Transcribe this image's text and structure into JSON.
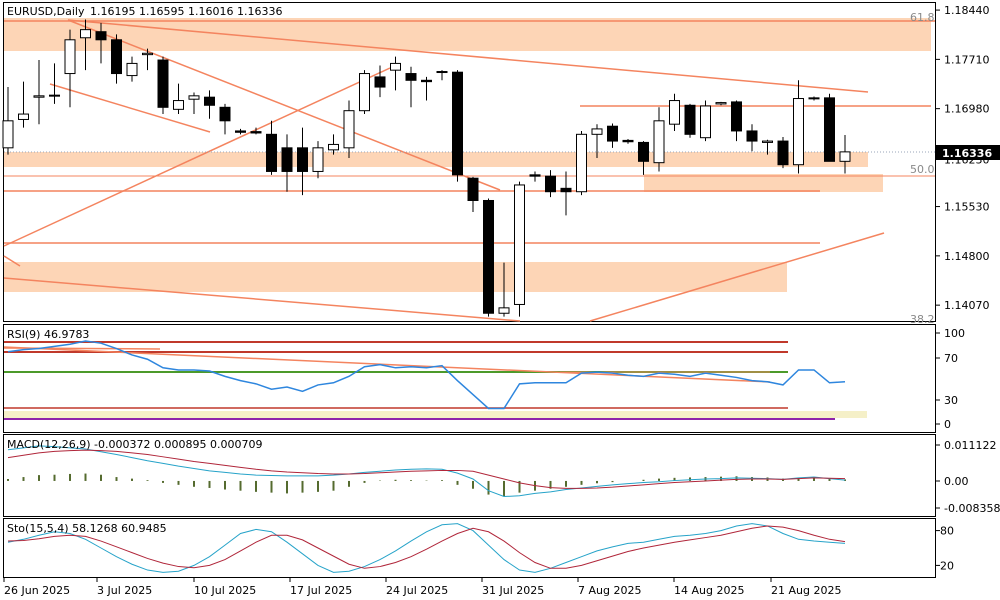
{
  "chart_data": {
    "type": "candlestick",
    "header": {
      "symbol": "EURUSD",
      "timeframe": "Daily",
      "label": "EURUSD,Daily",
      "ohlc_text": "1.16195 1.16595 1.16016 1.16336"
    },
    "current_price": "1.16336",
    "price_axis": {
      "ticks": [
        "1.18440",
        "1.17710",
        "1.16980",
        "1.16230",
        "1.15530",
        "1.14800",
        "1.14070"
      ],
      "ylim": [
        1.1385,
        1.1853
      ]
    },
    "date_axis": {
      "labels": [
        "26 Jun 2025",
        "3 Jul 2025",
        "10 Jul 2025",
        "17 Jul 2025",
        "24 Jul 2025",
        "31 Jul 2025",
        "7 Aug 2025",
        "14 Aug 2025",
        "21 Aug 2025"
      ]
    },
    "fib_labels": [
      "61.8",
      "50.0",
      "38.2"
    ],
    "candles": [
      {
        "o": 1.164,
        "h": 1.173,
        "l": 1.163,
        "c": 1.168
      },
      {
        "o": 1.1682,
        "h": 1.1738,
        "l": 1.167,
        "c": 1.169
      },
      {
        "o": 1.1715,
        "h": 1.177,
        "l": 1.1675,
        "c": 1.1717
      },
      {
        "o": 1.1718,
        "h": 1.1765,
        "l": 1.1705,
        "c": 1.1718
      },
      {
        "o": 1.175,
        "h": 1.1815,
        "l": 1.17,
        "c": 1.18
      },
      {
        "o": 1.1803,
        "h": 1.183,
        "l": 1.1755,
        "c": 1.1815
      },
      {
        "o": 1.1812,
        "h": 1.1825,
        "l": 1.1765,
        "c": 1.18
      },
      {
        "o": 1.18,
        "h": 1.1808,
        "l": 1.1735,
        "c": 1.175
      },
      {
        "o": 1.1747,
        "h": 1.1775,
        "l": 1.1738,
        "c": 1.1765
      },
      {
        "o": 1.1778,
        "h": 1.1787,
        "l": 1.1755,
        "c": 1.178
      },
      {
        "o": 1.177,
        "h": 1.1775,
        "l": 1.169,
        "c": 1.17
      },
      {
        "o": 1.1697,
        "h": 1.1735,
        "l": 1.169,
        "c": 1.171
      },
      {
        "o": 1.1712,
        "h": 1.1722,
        "l": 1.169,
        "c": 1.1717
      },
      {
        "o": 1.1715,
        "h": 1.1725,
        "l": 1.1683,
        "c": 1.1703
      },
      {
        "o": 1.17,
        "h": 1.1705,
        "l": 1.166,
        "c": 1.168
      },
      {
        "o": 1.1665,
        "h": 1.1668,
        "l": 1.166,
        "c": 1.1663
      },
      {
        "o": 1.1664,
        "h": 1.167,
        "l": 1.166,
        "c": 1.1662
      },
      {
        "o": 1.166,
        "h": 1.168,
        "l": 1.16,
        "c": 1.1605
      },
      {
        "o": 1.164,
        "h": 1.166,
        "l": 1.1575,
        "c": 1.1605
      },
      {
        "o": 1.164,
        "h": 1.167,
        "l": 1.157,
        "c": 1.1605
      },
      {
        "o": 1.1605,
        "h": 1.165,
        "l": 1.1595,
        "c": 1.164
      },
      {
        "o": 1.1637,
        "h": 1.166,
        "l": 1.163,
        "c": 1.1645
      },
      {
        "o": 1.164,
        "h": 1.171,
        "l": 1.1625,
        "c": 1.1695
      },
      {
        "o": 1.1695,
        "h": 1.1755,
        "l": 1.169,
        "c": 1.175
      },
      {
        "o": 1.1745,
        "h": 1.1762,
        "l": 1.1715,
        "c": 1.173
      },
      {
        "o": 1.1755,
        "h": 1.1775,
        "l": 1.1725,
        "c": 1.1765
      },
      {
        "o": 1.175,
        "h": 1.176,
        "l": 1.17,
        "c": 1.174
      },
      {
        "o": 1.174,
        "h": 1.1745,
        "l": 1.171,
        "c": 1.1738
      },
      {
        "o": 1.1752,
        "h": 1.1755,
        "l": 1.174,
        "c": 1.1753
      },
      {
        "o": 1.1752,
        "h": 1.1755,
        "l": 1.159,
        "c": 1.16
      },
      {
        "o": 1.1595,
        "h": 1.1597,
        "l": 1.1545,
        "c": 1.1562
      },
      {
        "o": 1.1562,
        "h": 1.1565,
        "l": 1.139,
        "c": 1.1395
      },
      {
        "o": 1.1395,
        "h": 1.147,
        "l": 1.139,
        "c": 1.1403
      },
      {
        "o": 1.1408,
        "h": 1.159,
        "l": 1.139,
        "c": 1.1585
      },
      {
        "o": 1.16,
        "h": 1.1605,
        "l": 1.159,
        "c": 1.1598
      },
      {
        "o": 1.1598,
        "h": 1.1607,
        "l": 1.1567,
        "c": 1.1575
      },
      {
        "o": 1.158,
        "h": 1.1605,
        "l": 1.154,
        "c": 1.1575
      },
      {
        "o": 1.1575,
        "h": 1.1665,
        "l": 1.157,
        "c": 1.166
      },
      {
        "o": 1.166,
        "h": 1.1675,
        "l": 1.1625,
        "c": 1.1668
      },
      {
        "o": 1.1672,
        "h": 1.1676,
        "l": 1.164,
        "c": 1.165
      },
      {
        "o": 1.1651,
        "h": 1.1653,
        "l": 1.1646,
        "c": 1.1649
      },
      {
        "o": 1.1648,
        "h": 1.165,
        "l": 1.16,
        "c": 1.162
      },
      {
        "o": 1.1618,
        "h": 1.17,
        "l": 1.1605,
        "c": 1.168
      },
      {
        "o": 1.1675,
        "h": 1.172,
        "l": 1.1665,
        "c": 1.171
      },
      {
        "o": 1.1703,
        "h": 1.1705,
        "l": 1.1655,
        "c": 1.166
      },
      {
        "o": 1.1655,
        "h": 1.171,
        "l": 1.165,
        "c": 1.1702
      },
      {
        "o": 1.1705,
        "h": 1.1708,
        "l": 1.1703,
        "c": 1.1707
      },
      {
        "o": 1.1708,
        "h": 1.171,
        "l": 1.165,
        "c": 1.1665
      },
      {
        "o": 1.1665,
        "h": 1.1675,
        "l": 1.1635,
        "c": 1.165
      },
      {
        "o": 1.1648,
        "h": 1.1652,
        "l": 1.163,
        "c": 1.165
      },
      {
        "o": 1.165,
        "h": 1.1656,
        "l": 1.161,
        "c": 1.1615
      },
      {
        "o": 1.1615,
        "h": 1.174,
        "l": 1.1602,
        "c": 1.1713
      },
      {
        "o": 1.1713,
        "h": 1.1716,
        "l": 1.171,
        "c": 1.1714
      },
      {
        "o": 1.1714,
        "h": 1.172,
        "l": 1.162,
        "c": 1.162
      },
      {
        "o": 1.162,
        "h": 1.1659,
        "l": 1.1602,
        "c": 1.1634
      }
    ],
    "rsi": {
      "label": "RSI(9) 46.9783",
      "ticks": [
        "100",
        "70",
        "30",
        "0"
      ],
      "ylim": [
        0,
        100
      ],
      "values": [
        75,
        77,
        78,
        80,
        82,
        85,
        83,
        78,
        72,
        68,
        60,
        58,
        58,
        57,
        52,
        48,
        45,
        40,
        42,
        38,
        44,
        46,
        52,
        61,
        63,
        60,
        61,
        60,
        62,
        48,
        35,
        22,
        22,
        45,
        46,
        46,
        46,
        55,
        56,
        55,
        53,
        52,
        55,
        54,
        52,
        55,
        53,
        51,
        48,
        47,
        44,
        58,
        58,
        46,
        47
      ]
    },
    "macd": {
      "label": "MACD(12,26,9) -0.000372 0.000895 0.000709",
      "ticks": [
        "0.011122",
        "0.00",
        "-0.008358"
      ],
      "ylim": [
        -0.009,
        0.0118
      ],
      "histogram": [
        0.0005,
        0.001,
        0.0015,
        0.0016,
        0.0018,
        0.0019,
        0.0016,
        0.001,
        0.0006,
        0.0002,
        -0.0005,
        -0.001,
        -0.0015,
        -0.0018,
        -0.0022,
        -0.0025,
        -0.0028,
        -0.003,
        -0.0032,
        -0.003,
        -0.0028,
        -0.0025,
        -0.0015,
        -0.0005,
        0.0001,
        0.0003,
        0.0002,
        0.0001,
        0.0002,
        -0.001,
        -0.002,
        -0.0035,
        -0.004,
        -0.003,
        -0.0025,
        -0.002,
        -0.0015,
        -0.001,
        -0.0006,
        -0.0003,
        0.0,
        0.0003,
        0.0006,
        0.0008,
        0.0009,
        0.001,
        0.0011,
        0.0012,
        0.001,
        0.0009,
        0.0006,
        0.0008,
        0.001,
        0.0006,
        0.0004
      ],
      "macd_line": [
        0.008,
        0.0085,
        0.009,
        0.0088,
        0.0085,
        0.0082,
        0.0075,
        0.0068,
        0.006,
        0.0052,
        0.0045,
        0.0038,
        0.0032,
        0.0026,
        0.0022,
        0.0018,
        0.0015,
        0.0014,
        0.0013,
        0.0013,
        0.0013,
        0.0015,
        0.0018,
        0.0022,
        0.0025,
        0.0028,
        0.003,
        0.0031,
        0.003,
        0.002,
        0.0005,
        -0.0025,
        -0.004,
        -0.0038,
        -0.0032,
        -0.0028,
        -0.0022,
        -0.0018,
        -0.0014,
        -0.001,
        -0.0007,
        -0.0004,
        -0.0002,
        0.0001,
        0.0003,
        0.0005,
        0.0006,
        0.0008,
        0.0007,
        0.0006,
        0.0004,
        0.0008,
        0.001,
        0.0006,
        0.0002
      ],
      "signal_line": [
        0.006,
        0.0066,
        0.0072,
        0.0076,
        0.0078,
        0.0079,
        0.0078,
        0.0076,
        0.0072,
        0.0068,
        0.0062,
        0.0056,
        0.005,
        0.0045,
        0.004,
        0.0035,
        0.003,
        0.0026,
        0.0023,
        0.0021,
        0.0019,
        0.0018,
        0.0018,
        0.0019,
        0.0021,
        0.0023,
        0.0025,
        0.0026,
        0.0027,
        0.0027,
        0.0025,
        0.0015,
        0.0005,
        -0.0005,
        -0.0012,
        -0.0017,
        -0.0019,
        -0.0019,
        -0.0018,
        -0.0016,
        -0.0013,
        -0.001,
        -0.0007,
        -0.0004,
        -0.0002,
        0.0,
        0.0002,
        0.0004,
        0.0005,
        0.0005,
        0.0004,
        0.0006,
        0.0008,
        0.0007,
        0.0006
      ]
    },
    "stochastic": {
      "label": "Sto(15,5,4) 58.1268 60.9485",
      "ticks": [
        "80",
        "20"
      ],
      "ylim": [
        0,
        100
      ],
      "k": [
        60,
        65,
        72,
        78,
        75,
        65,
        50,
        35,
        22,
        12,
        8,
        10,
        20,
        35,
        55,
        75,
        82,
        78,
        60,
        40,
        20,
        8,
        10,
        18,
        30,
        45,
        62,
        78,
        90,
        92,
        80,
        55,
        30,
        12,
        8,
        15,
        25,
        35,
        45,
        52,
        58,
        60,
        65,
        70,
        72,
        75,
        80,
        88,
        92,
        88,
        75,
        65,
        62,
        60,
        58
      ],
      "d": [
        62,
        63,
        66,
        70,
        72,
        70,
        62,
        52,
        42,
        32,
        24,
        18,
        16,
        20,
        30,
        45,
        60,
        72,
        72,
        64,
        50,
        36,
        22,
        15,
        18,
        25,
        35,
        48,
        62,
        75,
        84,
        78,
        62,
        42,
        25,
        15,
        15,
        20,
        28,
        36,
        44,
        50,
        55,
        60,
        64,
        68,
        72,
        78,
        84,
        88,
        86,
        80,
        72,
        65,
        61
      ]
    }
  }
}
